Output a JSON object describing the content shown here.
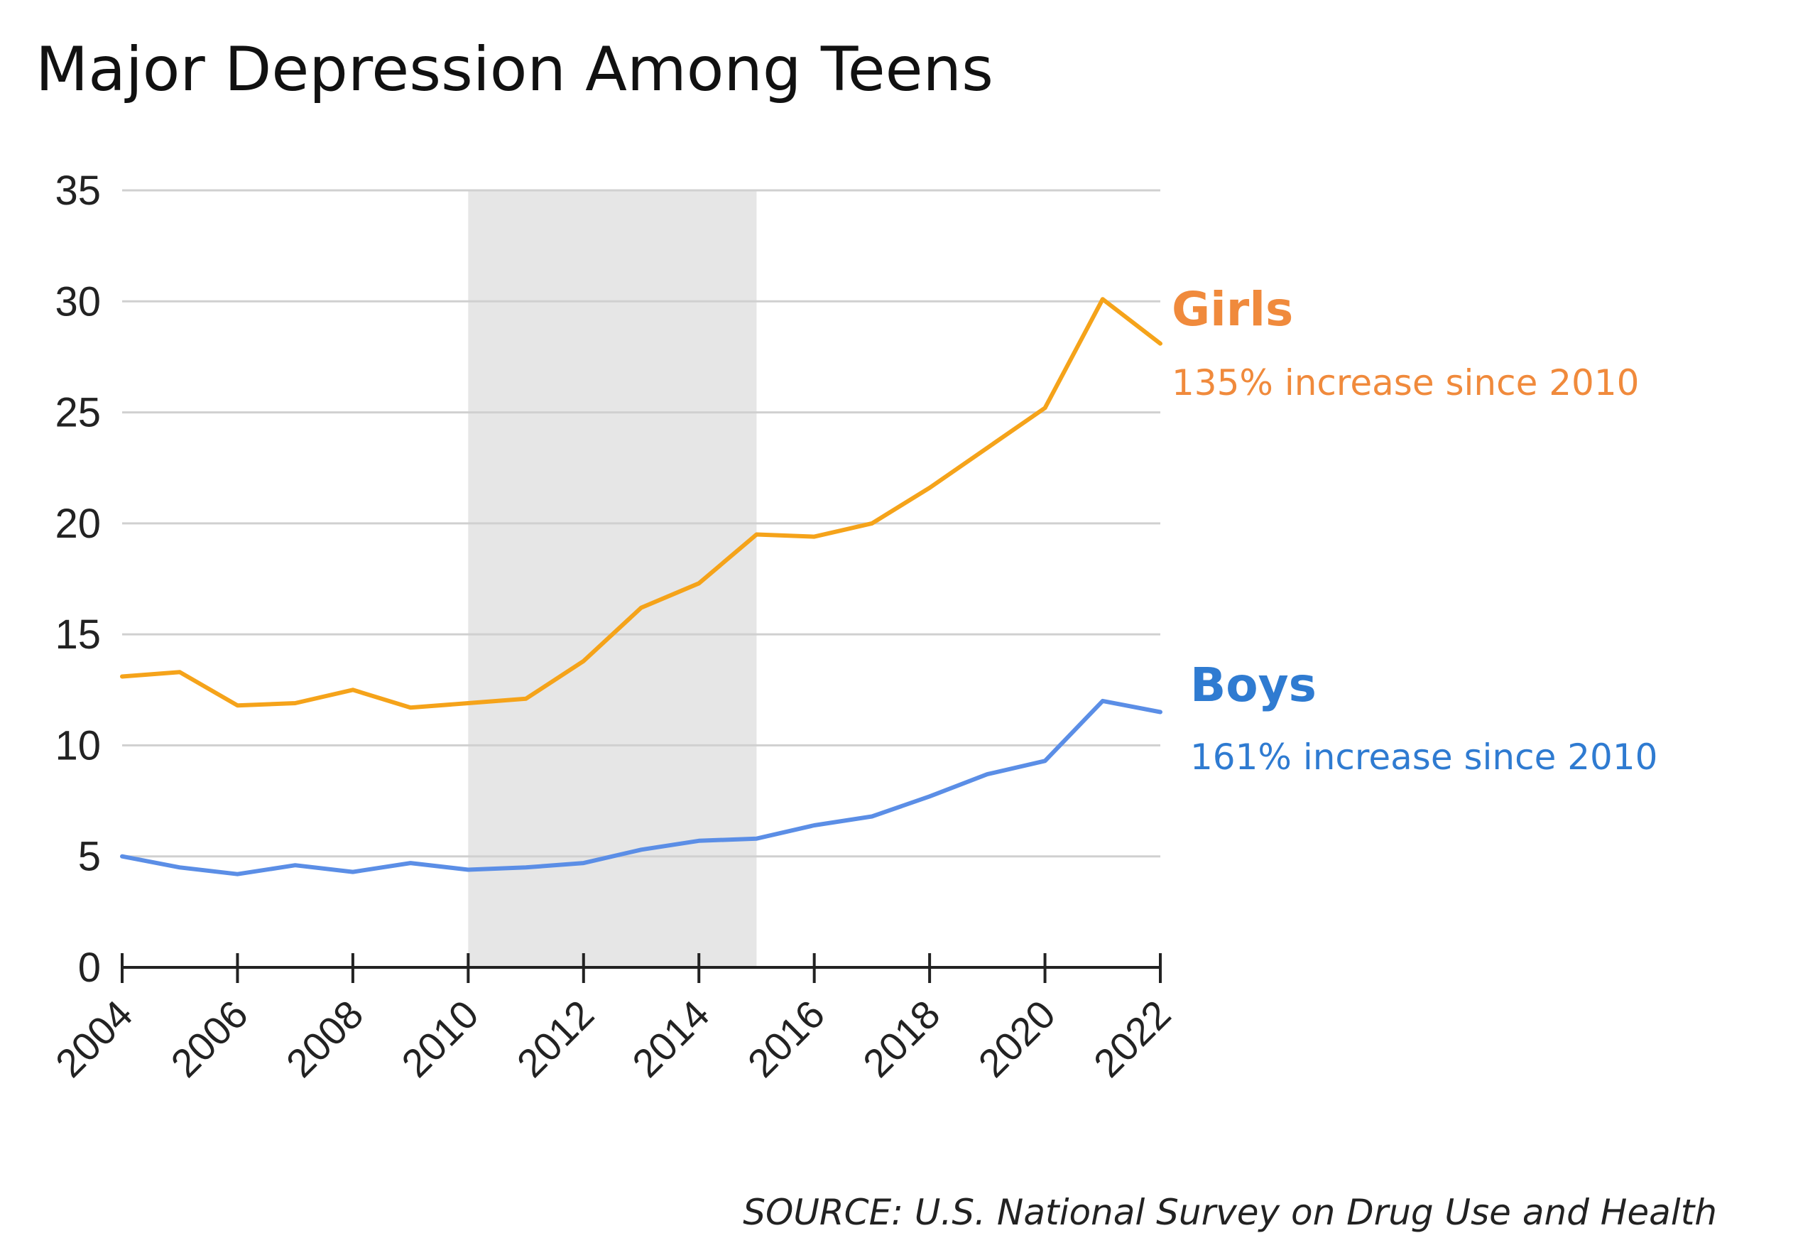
{
  "colors": {
    "girls_line": "#F5A31A",
    "girls_label": "#F08A3C",
    "boys_line": "#5B8EE6",
    "boys_label": "#2F7BD1",
    "shade": "#E6E6E6",
    "grid": "#D0D0D0",
    "axis": "#222222"
  },
  "chart_data": {
    "type": "line",
    "title": "Major Depression Among Teens",
    "xlabel": "",
    "ylabel": "",
    "source": "SOURCE: U.S. National Survey on Drug Use and Health",
    "ylim": [
      0,
      35
    ],
    "xlim": [
      2004,
      2022
    ],
    "yticks": [
      0,
      5,
      10,
      15,
      20,
      25,
      30,
      35
    ],
    "xticks": [
      2004,
      2006,
      2008,
      2010,
      2012,
      2014,
      2016,
      2018,
      2020,
      2022
    ],
    "grid": true,
    "shaded_range": [
      2010,
      2015
    ],
    "x": [
      2004,
      2005,
      2006,
      2007,
      2008,
      2009,
      2010,
      2011,
      2012,
      2013,
      2014,
      2015,
      2016,
      2017,
      2018,
      2019,
      2020,
      2021,
      2022
    ],
    "series": [
      {
        "name": "Girls",
        "annotation": "135% increase since 2010",
        "values": [
          13.1,
          13.3,
          11.8,
          11.9,
          12.5,
          11.7,
          11.9,
          12.1,
          13.8,
          16.2,
          17.3,
          19.5,
          19.4,
          20.0,
          21.6,
          23.4,
          25.2,
          30.1,
          28.1
        ]
      },
      {
        "name": "Boys",
        "annotation": "161% increase since 2010",
        "values": [
          5.0,
          4.5,
          4.2,
          4.6,
          4.3,
          4.7,
          4.4,
          4.5,
          4.7,
          5.3,
          5.7,
          5.8,
          6.4,
          6.8,
          7.7,
          8.7,
          9.3,
          12.0,
          11.5
        ]
      }
    ]
  }
}
